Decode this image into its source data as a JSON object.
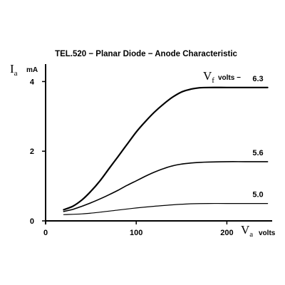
{
  "chart_data": {
    "type": "line",
    "title": "TEL.520 − Planar Diode − Anode Characteristic",
    "x_axis": {
      "symbol": "V",
      "subscript": "a",
      "unit": "volts",
      "range": [
        0,
        250
      ],
      "ticks": [
        0,
        100,
        200
      ],
      "tick_labels": [
        "0",
        "100",
        "200"
      ]
    },
    "y_axis": {
      "symbol": "I",
      "subscript": "a",
      "unit": "mA",
      "range": [
        0,
        4.5
      ],
      "ticks": [
        0,
        2,
        4
      ],
      "tick_labels": [
        "0",
        "2",
        "4"
      ]
    },
    "legend_header": {
      "symbol": "V",
      "subscript": "f",
      "unit": "volts",
      "dash": " − "
    },
    "grid": false,
    "series": [
      {
        "name": "6.3",
        "label": "6.3",
        "stroke_width": 2.2,
        "points": [
          [
            20,
            0.32
          ],
          [
            30,
            0.42
          ],
          [
            40,
            0.6
          ],
          [
            50,
            0.85
          ],
          [
            60,
            1.15
          ],
          [
            70,
            1.5
          ],
          [
            80,
            1.85
          ],
          [
            90,
            2.2
          ],
          [
            100,
            2.55
          ],
          [
            110,
            2.85
          ],
          [
            120,
            3.12
          ],
          [
            130,
            3.35
          ],
          [
            140,
            3.55
          ],
          [
            150,
            3.7
          ],
          [
            160,
            3.78
          ],
          [
            170,
            3.82
          ],
          [
            180,
            3.83
          ],
          [
            200,
            3.83
          ],
          [
            220,
            3.83
          ],
          [
            245,
            3.83
          ]
        ]
      },
      {
        "name": "5.6",
        "label": "5.6",
        "stroke_width": 1.6,
        "points": [
          [
            20,
            0.27
          ],
          [
            30,
            0.33
          ],
          [
            40,
            0.42
          ],
          [
            50,
            0.52
          ],
          [
            60,
            0.63
          ],
          [
            70,
            0.75
          ],
          [
            80,
            0.88
          ],
          [
            90,
            1.02
          ],
          [
            100,
            1.15
          ],
          [
            110,
            1.28
          ],
          [
            120,
            1.4
          ],
          [
            130,
            1.5
          ],
          [
            140,
            1.58
          ],
          [
            150,
            1.63
          ],
          [
            160,
            1.66
          ],
          [
            170,
            1.68
          ],
          [
            180,
            1.69
          ],
          [
            200,
            1.7
          ],
          [
            220,
            1.7
          ],
          [
            245,
            1.7
          ]
        ]
      },
      {
        "name": "5.0",
        "label": "5.0",
        "stroke_width": 1.2,
        "points": [
          [
            20,
            0.18
          ],
          [
            40,
            0.2
          ],
          [
            60,
            0.25
          ],
          [
            80,
            0.31
          ],
          [
            100,
            0.37
          ],
          [
            120,
            0.42
          ],
          [
            140,
            0.46
          ],
          [
            160,
            0.49
          ],
          [
            180,
            0.5
          ],
          [
            200,
            0.5
          ],
          [
            245,
            0.5
          ]
        ]
      }
    ]
  }
}
